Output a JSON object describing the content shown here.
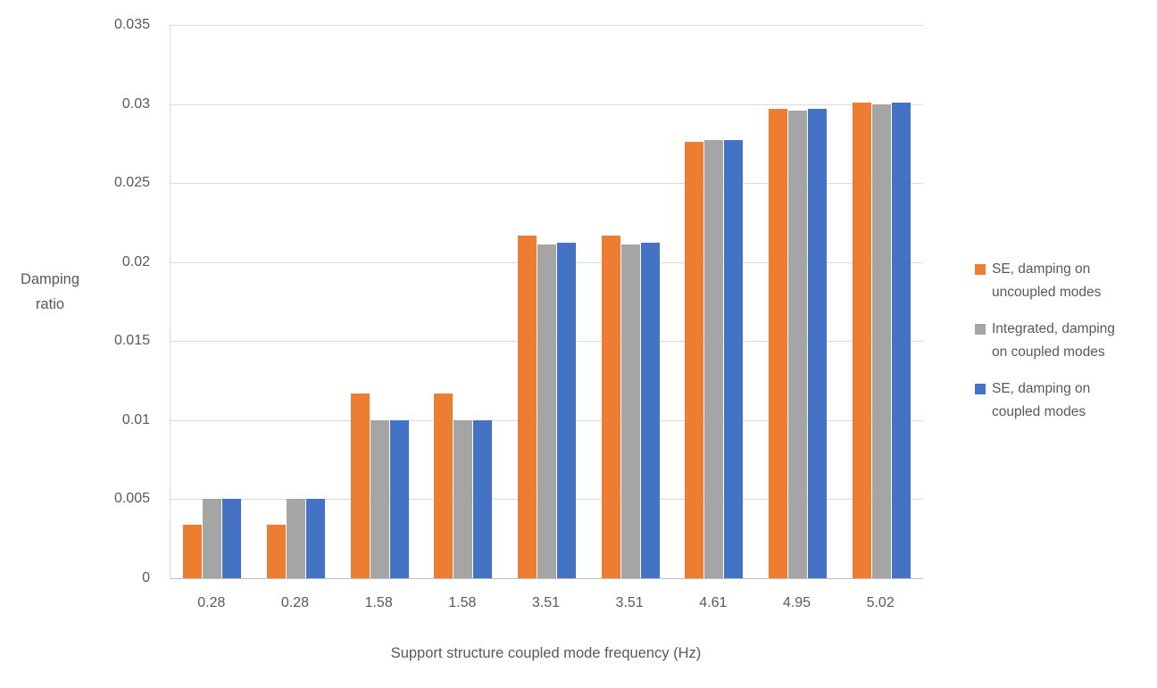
{
  "chart_data": {
    "type": "bar",
    "title": "",
    "xlabel": "Support structure coupled mode frequency (Hz)",
    "ylabel": "Damping ratio",
    "ylabel_lines": [
      "Damping",
      "ratio"
    ],
    "categories": [
      "0.28",
      "0.28",
      "1.58",
      "1.58",
      "3.51",
      "3.51",
      "4.61",
      "4.95",
      "5.02"
    ],
    "series": [
      {
        "name": "SE, damping on uncoupled modes",
        "legend_lines": [
          "SE, damping on",
          "uncoupled modes"
        ],
        "color": "#ED7D31",
        "values": [
          0.0034,
          0.0034,
          0.0117,
          0.0117,
          0.0217,
          0.0217,
          0.0276,
          0.0297,
          0.0301
        ]
      },
      {
        "name": "Integrated, damping on coupled modes",
        "legend_lines": [
          "Integrated, damping",
          "on coupled modes"
        ],
        "color": "#A5A5A5",
        "values": [
          0.005,
          0.005,
          0.01,
          0.01,
          0.0211,
          0.0211,
          0.0277,
          0.0296,
          0.03
        ]
      },
      {
        "name": "SE, damping on coupled modes",
        "legend_lines": [
          "SE, damping on",
          "coupled modes"
        ],
        "color": "#4472C4",
        "values": [
          0.005,
          0.005,
          0.01,
          0.01,
          0.0212,
          0.0212,
          0.0277,
          0.0297,
          0.0301
        ]
      }
    ],
    "ylim": [
      0,
      0.035
    ],
    "yticks": [
      {
        "label": "0",
        "value": 0
      },
      {
        "label": "0.005",
        "value": 0.005
      },
      {
        "label": "0.01",
        "value": 0.01
      },
      {
        "label": "0.015",
        "value": 0.015
      },
      {
        "label": "0.02",
        "value": 0.02
      },
      {
        "label": "0.025",
        "value": 0.025
      },
      {
        "label": "0.03",
        "value": 0.03
      },
      {
        "label": "0.035",
        "value": 0.035
      }
    ],
    "grid": true,
    "legend_position": "right"
  },
  "colors": {
    "text": "#595959",
    "gridline": "#D9D9D9",
    "axis_line": "#BFBFBF",
    "background": "#FFFFFF"
  }
}
